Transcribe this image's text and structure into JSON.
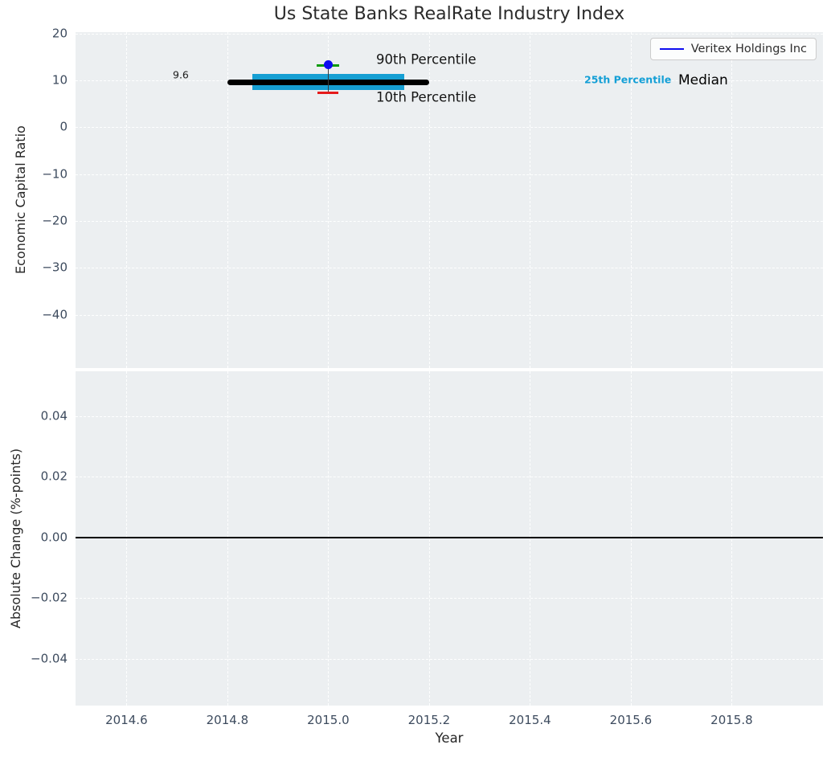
{
  "figure": {
    "title": "Us State Banks RealRate Industry Index",
    "background_color": "#ffffff",
    "panel_color": "#eceff1"
  },
  "chart_data": [
    {
      "type": "band-errorbar",
      "panel": "economic-capital-ratio",
      "ylabel": "Economic Capital Ratio",
      "grid": true,
      "xlim": [
        2014.499,
        2015.981
      ],
      "ylim": [
        -51.4,
        20.3
      ],
      "yticks": [
        20,
        10,
        0,
        -10,
        -20,
        -30,
        -40
      ],
      "ytick_labels": [
        "20",
        "10",
        "0",
        "−10",
        "−20",
        "−30",
        "−40"
      ],
      "xticks": [
        2014.6,
        2014.8,
        2015.0,
        2015.2,
        2015.4,
        2015.6,
        2015.8
      ],
      "legend": {
        "label": "Veritex Holdings Inc",
        "color": "#0d0df0",
        "position": "upper right"
      },
      "series": {
        "company": {
          "name": "Veritex Holdings Inc",
          "x": 2015.0,
          "value": 13.4,
          "p90": 13.1,
          "p10": 7.4,
          "color": "#0d0df0",
          "cap_high_color": "#0a9b0a",
          "cap_low_color": "#e51a1a",
          "errline_color": "#3a3a3a"
        },
        "percentile_band": {
          "x_start": 2014.85,
          "x_end": 2015.15,
          "p25": 7.9,
          "p75": 11.4,
          "color": "#169fd3"
        },
        "median_line": {
          "x_start": 2014.8,
          "x_end": 2015.2,
          "value": 9.6,
          "color": "#000000"
        }
      },
      "annotations": [
        {
          "text": "90th Percentile",
          "color": "#141414"
        },
        {
          "text": "10th Percentile",
          "color": "#141414"
        },
        {
          "text": "25th Percentile",
          "color": "#149fd6"
        },
        {
          "text": "Median",
          "color": "#000000"
        },
        {
          "text": "9.6",
          "color": "#1a1a1a"
        }
      ]
    },
    {
      "type": "line",
      "panel": "absolute-change",
      "ylabel": "Absolute Change (%-points)",
      "xlabel": "Year",
      "grid": true,
      "xlim": [
        2014.499,
        2015.981
      ],
      "ylim": [
        -0.0554,
        0.0548
      ],
      "yticks": [
        0.04,
        0.02,
        0.0,
        -0.02,
        -0.04
      ],
      "ytick_labels": [
        "0.04",
        "0.02",
        "0.00",
        "−0.02",
        "−0.04"
      ],
      "xticks": [
        2014.6,
        2014.8,
        2015.0,
        2015.2,
        2015.4,
        2015.6,
        2015.8
      ],
      "xtick_labels": [
        "2014.6",
        "2014.8",
        "2015.0",
        "2015.2",
        "2015.4",
        "2015.6",
        "2015.8"
      ],
      "zero_line": 0.0,
      "zero_line_color": "#000000"
    }
  ]
}
